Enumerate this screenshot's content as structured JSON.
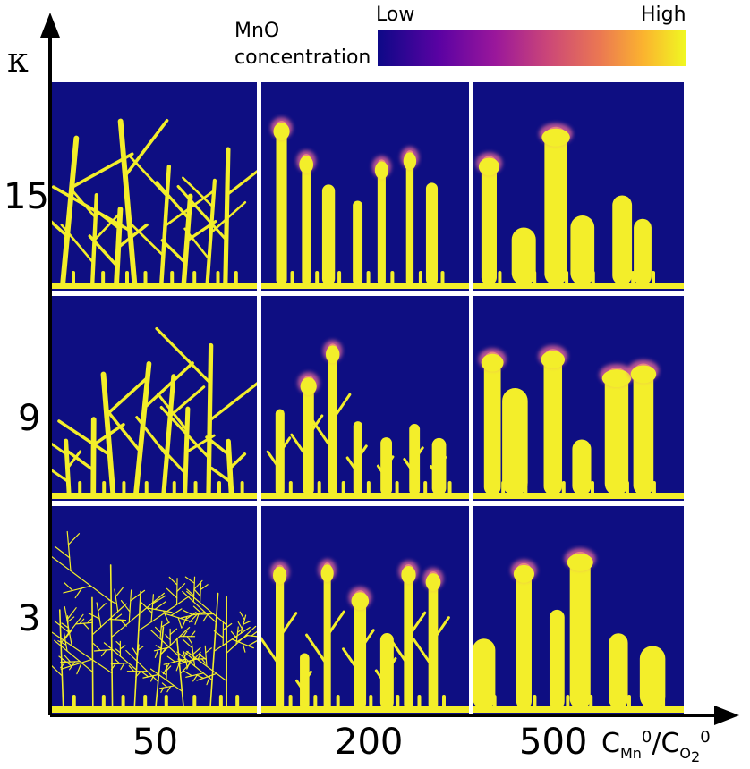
{
  "figure": {
    "colorbar": {
      "title_line1": "MnO",
      "title_line2": "concentration",
      "low_label": "Low",
      "high_label": "High",
      "colors": [
        "#0d0887",
        "#5b02a3",
        "#9a179b",
        "#cb4678",
        "#eb7852",
        "#fbb32f",
        "#f0f921"
      ]
    },
    "y_axis": {
      "label": "κ",
      "rows": [
        "15",
        "9",
        "3"
      ]
    },
    "x_axis": {
      "columns": [
        "50",
        "200",
        "500"
      ],
      "label_base_c": "C",
      "label_sub_mn": "Mn",
      "label_sup": "0",
      "label_slash": "/",
      "label_sub_o2": "O",
      "label_sub_2": "2"
    },
    "panel_colors": {
      "background": "#0e0e82",
      "deposit": "#f3ee2a",
      "tip": "#e3679a"
    }
  }
}
